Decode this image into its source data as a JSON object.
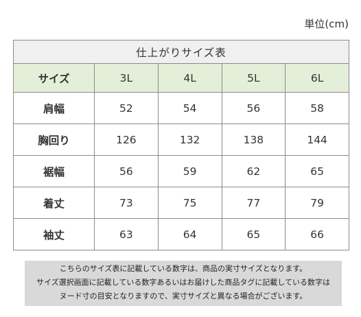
{
  "unit_label": "単位(cm)",
  "table": {
    "caption": "仕上がりサイズ表",
    "header": [
      "サイズ",
      "3L",
      "4L",
      "5L",
      "6L"
    ],
    "rows": [
      {
        "label": "肩幅",
        "values": [
          "52",
          "54",
          "56",
          "58"
        ]
      },
      {
        "label": "胸回り",
        "values": [
          "126",
          "132",
          "138",
          "144"
        ]
      },
      {
        "label": "裾幅",
        "values": [
          "56",
          "59",
          "62",
          "65"
        ]
      },
      {
        "label": "着丈",
        "values": [
          "73",
          "75",
          "77",
          "79"
        ]
      },
      {
        "label": "袖丈",
        "values": [
          "63",
          "64",
          "65",
          "66"
        ]
      }
    ]
  },
  "note_lines": [
    "こちらのサイズ表に記載している数字は、商品の実寸サイズとなります。",
    "サイズ選択画面に記載している数字あるいはお届けした商品タグに記載している数字は",
    "ヌード寸の目安となりますので、実寸サイズと異なる場合がございます。"
  ],
  "colors": {
    "caption_bg": "#f0f0f0",
    "header_bg": "#e3efd8",
    "note_bg": "#d9d9d9",
    "border": "#8a8a8a"
  }
}
